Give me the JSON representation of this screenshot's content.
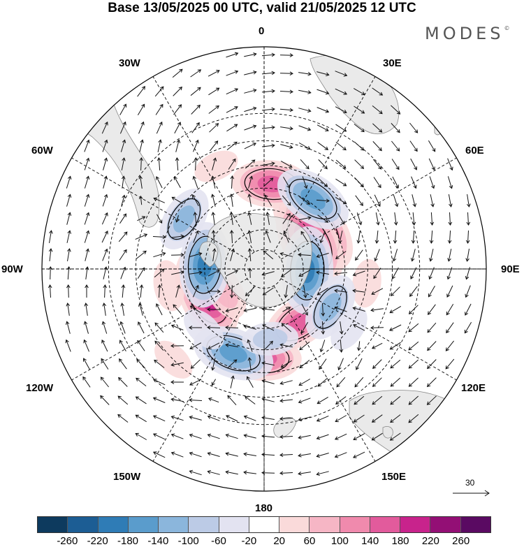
{
  "title": "Base 13/05/2025 00 UTC, valid 21/05/2025 12 UTC",
  "logo": {
    "text": "MODES",
    "mark": "©"
  },
  "map": {
    "projection": "south-polar-stereographic",
    "longitude_labels": {
      "lon_0": "0",
      "lon_30e": "30E",
      "lon_60e": "60E",
      "lon_90e": "90E",
      "lon_120e": "120E",
      "lon_150e": "150E",
      "lon_180": "180",
      "lon_150w": "150W",
      "lon_120w": "120W",
      "lon_90w": "90W",
      "lon_60w": "60W",
      "lon_30w": "30W"
    },
    "reference_vector": "30",
    "colors": {
      "land": "#e6e6e6",
      "coast": "#888888",
      "grid": "#000000"
    }
  },
  "colorbar": {
    "colors": [
      "#0d3a5e",
      "#1c5d94",
      "#2f7cb6",
      "#5a9ccc",
      "#8bb6dc",
      "#bccbe6",
      "#e3e3f1",
      "#ffffff",
      "#fadada",
      "#f6b6c5",
      "#f08aad",
      "#e25b9c",
      "#c8238c",
      "#930f75",
      "#5a0a62"
    ],
    "labels": [
      "-260",
      "-220",
      "-180",
      "-140",
      "-100",
      "-60",
      "-20",
      "20",
      "60",
      "100",
      "140",
      "180",
      "220",
      "260"
    ]
  },
  "anomalies": [
    {
      "lat": -58,
      "lon": 50,
      "value": 240
    },
    {
      "lat": -63,
      "lon": 59,
      "value": 210
    },
    {
      "lat": -59,
      "lon": -113,
      "value": 220
    },
    {
      "lat": -48,
      "lon": 5,
      "value": 160
    },
    {
      "lat": -58,
      "lon": 146,
      "value": 150
    },
    {
      "lat": -46,
      "lon": 180,
      "value": 140
    },
    {
      "lat": -36,
      "lon": -25,
      "value": 30
    },
    {
      "lat": -43,
      "lon": -100,
      "value": 50
    },
    {
      "lat": -40,
      "lon": 98,
      "value": 40
    },
    {
      "lat": -30,
      "lon": -135,
      "value": 30
    },
    {
      "lat": -67,
      "lon": -120,
      "value": 80
    },
    {
      "lat": -48,
      "lon": 35,
      "value": -160
    },
    {
      "lat": -68,
      "lon": 92,
      "value": -190
    },
    {
      "lat": -60,
      "lon": -86,
      "value": -180
    },
    {
      "lat": -46,
      "lon": -160,
      "value": -170
    },
    {
      "lat": -52,
      "lon": 120,
      "value": -120
    },
    {
      "lat": -44,
      "lon": -58,
      "value": -110
    },
    {
      "lat": -55,
      "lon": 175,
      "value": -70
    },
    {
      "lat": -40,
      "lon": 125,
      "value": -40
    },
    {
      "lat": -48,
      "lon": -135,
      "value": -40
    }
  ]
}
